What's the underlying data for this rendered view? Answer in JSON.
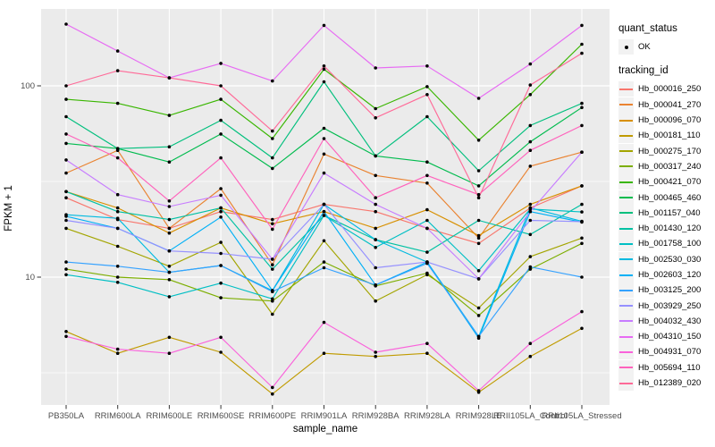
{
  "legend": {
    "quant_status_title": "quant_status",
    "quant_status_value": "OK",
    "tracking_id_title": "tracking_id"
  },
  "chart_data": {
    "type": "line",
    "title": "",
    "xlabel": "sample_name",
    "ylabel": "FPKM + 1",
    "y_scale": "log10",
    "y_ticks": [
      10,
      100
    ],
    "y_minor_ticks": [
      3.162,
      31.62
    ],
    "ylim": [
      2.1,
      240
    ],
    "grid": "on",
    "legend_position": "right",
    "panel_color": "#EBEBEB",
    "grid_color": "#FFFFFF",
    "point_color": "#000000",
    "x_categories": [
      "PB350LA",
      "RRIM600LA",
      "RRIM600LE",
      "RRIM600SE",
      "RRIM600PE",
      "RRIM901LA",
      "RRIM928BA",
      "RRIM928LA",
      "RRIM928LE",
      "RRII105LA_Control",
      "RRII105LA_Stressed"
    ],
    "series": [
      {
        "name": "Hb_000016_250",
        "color": "#F8766D",
        "quant_status": "OK",
        "values": [
          26,
          20,
          18,
          22,
          20,
          24,
          22,
          18,
          15,
          23,
          30
        ]
      },
      {
        "name": "Hb_000041_270",
        "color": "#EA8331",
        "quant_status": "OK",
        "values": [
          35,
          46,
          18,
          29,
          11.6,
          44,
          34,
          31,
          16,
          38,
          45
        ]
      },
      {
        "name": "Hb_000096_070",
        "color": "#D89000",
        "quant_status": "OK",
        "values": [
          28,
          23,
          17,
          23,
          19,
          22,
          18,
          22.5,
          16.5,
          24,
          30
        ]
      },
      {
        "name": "Hb_000181_110",
        "color": "#C09B00",
        "quant_status": "OK",
        "values": [
          5.2,
          4.0,
          4.85,
          4.05,
          2.45,
          4.0,
          3.85,
          4.0,
          2.5,
          3.85,
          5.4
        ]
      },
      {
        "name": "Hb_000275_170",
        "color": "#A3A500",
        "quant_status": "OK",
        "values": [
          18,
          14.5,
          11.4,
          15.2,
          6.4,
          15.5,
          7.5,
          10.3,
          6.9,
          12.8,
          16
        ]
      },
      {
        "name": "Hb_000317_240",
        "color": "#7CAE00",
        "quant_status": "OK",
        "values": [
          11,
          10,
          9.7,
          7.8,
          7.5,
          12,
          9,
          10.5,
          6.3,
          11,
          15
        ]
      },
      {
        "name": "Hb_000421_070",
        "color": "#39B600",
        "quant_status": "OK",
        "values": [
          85,
          81,
          70,
          85,
          53,
          122,
          76,
          99,
          52,
          90,
          165
        ]
      },
      {
        "name": "Hb_000465_460",
        "color": "#00BB4E",
        "quant_status": "OK",
        "values": [
          50,
          47,
          40,
          56,
          37,
          60,
          43,
          40,
          30,
          51,
          77
        ]
      },
      {
        "name": "Hb_001157_040",
        "color": "#00BF7D",
        "quant_status": "OK",
        "values": [
          69,
          47,
          48,
          66,
          42,
          105,
          43,
          69,
          36,
          62,
          81
        ]
      },
      {
        "name": "Hb_001430_120",
        "color": "#00C1A3",
        "quant_status": "OK",
        "values": [
          28,
          22,
          20,
          23,
          11,
          21,
          15.7,
          13.5,
          19.8,
          16.7,
          24
        ]
      },
      {
        "name": "Hb_001758_100",
        "color": "#00BFC4",
        "quant_status": "OK",
        "values": [
          10.3,
          9.4,
          7.9,
          9.3,
          7.7,
          21,
          14.3,
          19.8,
          10.8,
          22.7,
          21.9
        ]
      },
      {
        "name": "Hb_002530_030",
        "color": "#00BAE0",
        "quant_status": "OK",
        "values": [
          21.2,
          20.3,
          10.6,
          11.5,
          8.5,
          24,
          15.7,
          12,
          4.9,
          23,
          19.6
        ]
      },
      {
        "name": "Hb_002603_120",
        "color": "#00B0F6",
        "quant_status": "OK",
        "values": [
          20.8,
          18,
          13.7,
          20.6,
          8.5,
          22,
          9.1,
          12,
          4.8,
          22,
          19.4
        ]
      },
      {
        "name": "Hb_003125_200",
        "color": "#35A2FF",
        "quant_status": "OK",
        "values": [
          12,
          11.4,
          10.6,
          11.5,
          8.4,
          11.2,
          9.1,
          11.8,
          4.9,
          11.3,
          10
        ]
      },
      {
        "name": "Hb_003929_250",
        "color": "#9590FF",
        "quant_status": "OK",
        "values": [
          19.8,
          18,
          13.7,
          13.3,
          12.4,
          24,
          11.2,
          12,
          9.8,
          19.8,
          19.5
        ]
      },
      {
        "name": "Hb_004032_430",
        "color": "#C77CFF",
        "quant_status": "OK",
        "values": [
          41,
          27,
          23.4,
          26.8,
          12.4,
          35,
          24,
          18,
          9.8,
          22,
          45
        ]
      },
      {
        "name": "Hb_004310_150",
        "color": "#E76BF3",
        "quant_status": "OK",
        "values": [
          210,
          152,
          110,
          131,
          106,
          207,
          124,
          127,
          86,
          130,
          207
        ]
      },
      {
        "name": "Hb_004931_070",
        "color": "#FA62DB",
        "quant_status": "OK",
        "values": [
          4.9,
          4.2,
          4.0,
          4.85,
          2.65,
          5.8,
          4.05,
          4.5,
          2.55,
          4.5,
          6.6
        ]
      },
      {
        "name": "Hb_005694_110",
        "color": "#FF62BC",
        "quant_status": "OK",
        "values": [
          56,
          42,
          25,
          42,
          17.8,
          53,
          26,
          34,
          27,
          46,
          62
        ]
      },
      {
        "name": "Hb_012389_020",
        "color": "#FF6A98",
        "quant_status": "OK",
        "values": [
          100,
          120,
          110,
          100,
          58,
          127,
          68,
          90,
          26,
          101,
          148
        ]
      }
    ]
  }
}
